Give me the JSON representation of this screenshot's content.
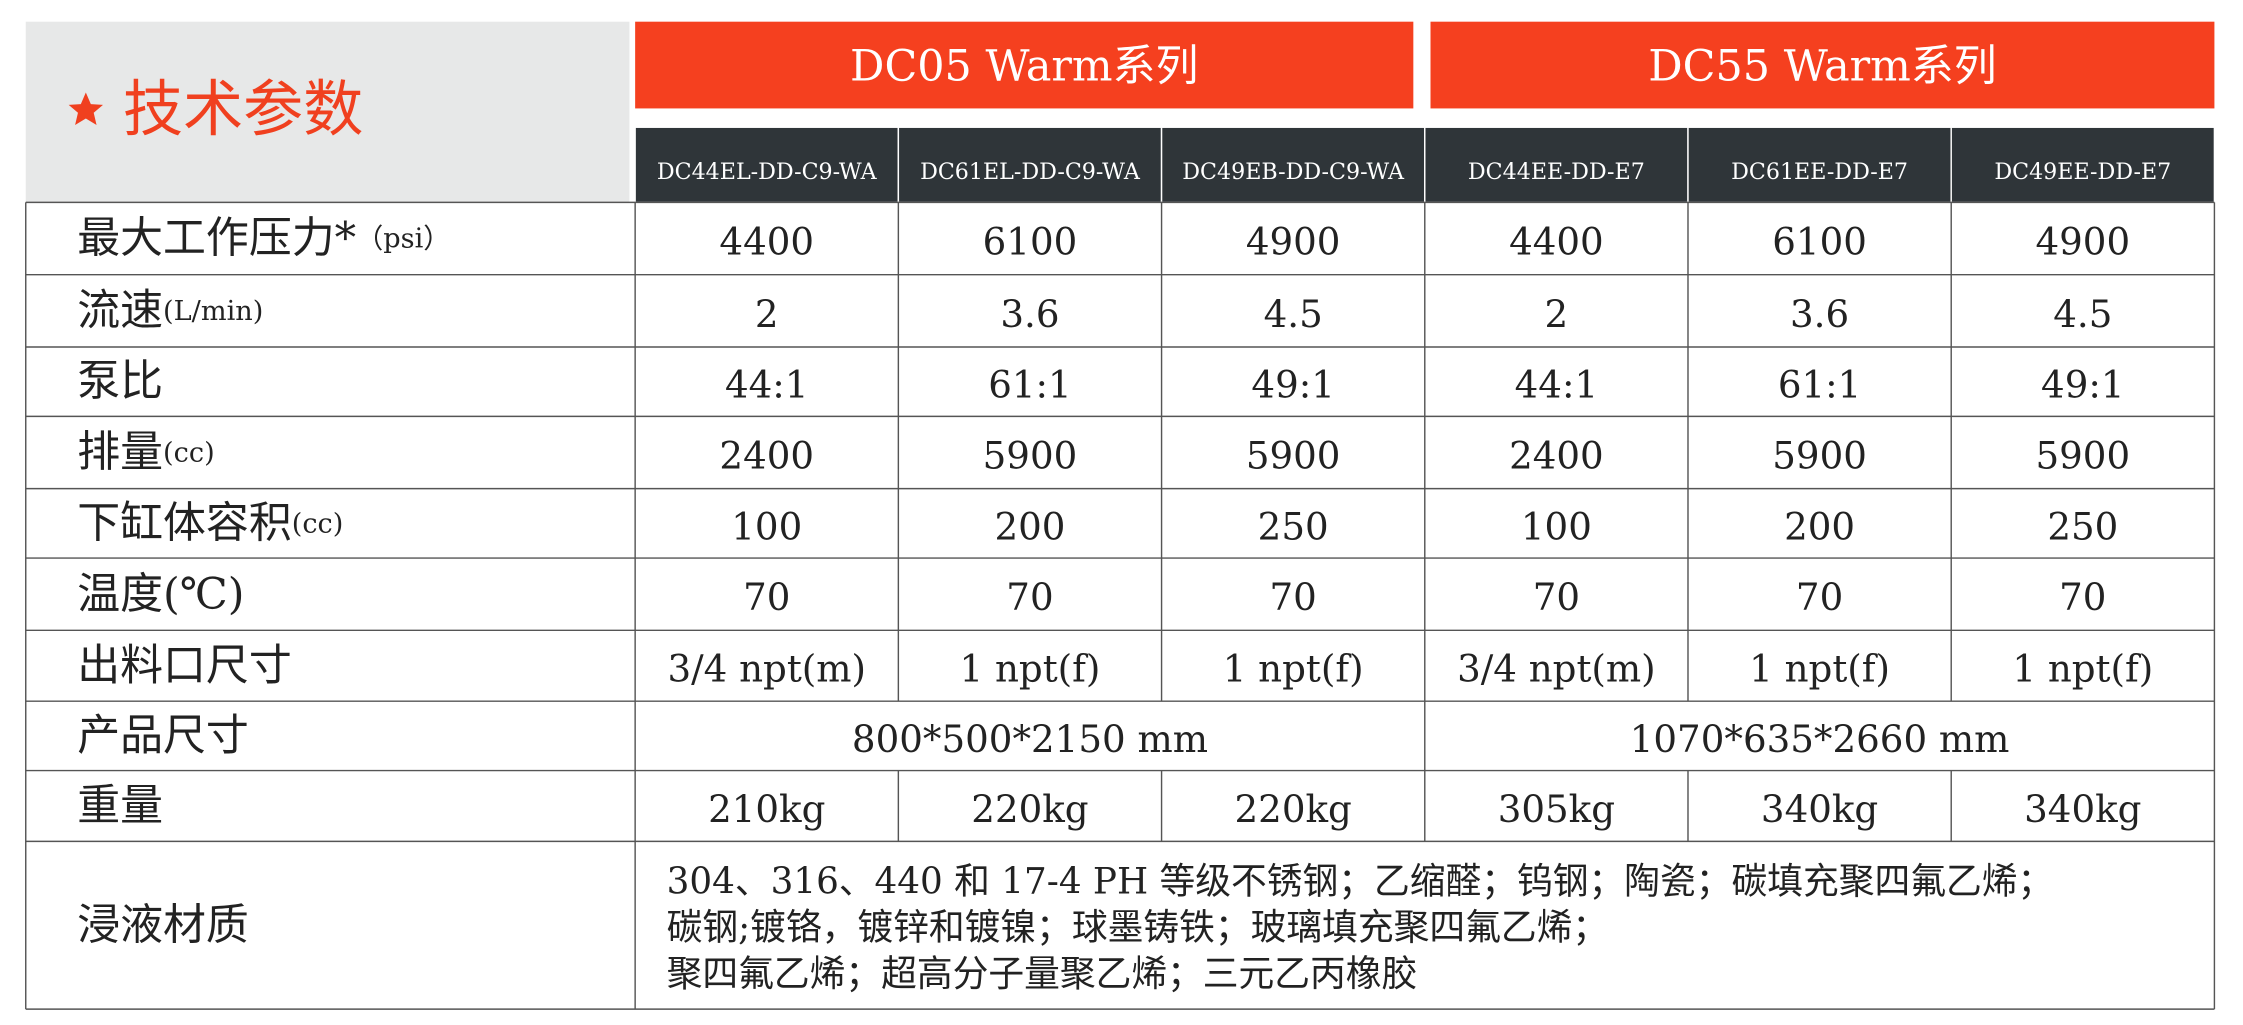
{
  "header": {
    "title": "技术参数",
    "series": [
      "DC05 Warm系列",
      "DC55 Warm系列"
    ],
    "models": [
      "DC44EL-DD-C9-WA",
      "DC61EL-DD-C9-WA",
      "DC49EB-DD-C9-WA",
      "DC44EE-DD-E7",
      "DC61EE-DD-E7",
      "DC49EE-DD-E7"
    ]
  },
  "table": {
    "rows": [
      {
        "label": "最大工作压力*",
        "unit": "（psi）",
        "cells": [
          "4400",
          "6100",
          "4900",
          "4400",
          "6100",
          "4900"
        ]
      },
      {
        "label": "流速",
        "unit": "(L/min)",
        "cells": [
          "2",
          "3.6",
          "4.5",
          "2",
          "3.6",
          "4.5"
        ]
      },
      {
        "label": "泵比",
        "cells": [
          "44:1",
          "61:1",
          "49:1",
          "44:1",
          "61:1",
          "49:1"
        ]
      },
      {
        "label": "排量",
        "unit": "(cc)",
        "cells": [
          "2400",
          "5900",
          "5900",
          "2400",
          "5900",
          "5900"
        ]
      },
      {
        "label": "下缸体容积",
        "unit": "(cc)",
        "cells": [
          "100",
          "200",
          "250",
          "100",
          "200",
          "250"
        ]
      },
      {
        "label": "温度(℃)",
        "cells": [
          "70",
          "70",
          "70",
          "70",
          "70",
          "70"
        ]
      },
      {
        "label": "出料口尺寸",
        "cells": [
          "3/4 npt(m)",
          "1 npt(f)",
          "1 npt(f)",
          "3/4 npt(m)",
          "1 npt(f)",
          "1 npt(f)"
        ]
      },
      {
        "label": "产品尺寸",
        "cells": [
          "800*500*2150 mm",
          "1070*635*2660 mm"
        ]
      },
      {
        "label": "重量",
        "cells": [
          "210kg",
          "220kg",
          "220kg",
          "305kg",
          "340kg",
          "340kg"
        ]
      },
      {
        "label": "浸液材质",
        "lines": [
          "304、316、440 和 17-4 PH 等级不锈钢；乙缩醛；钨钢；陶瓷；碳填充聚四氟乙烯；",
          "碳钢;镀铬，镀锌和镀镍；球墨铸铁；玻璃填充聚四氟乙烯；",
          "聚四氟乙烯；超高分子量聚乙烯；三元乙丙橡胶"
        ]
      }
    ]
  }
}
